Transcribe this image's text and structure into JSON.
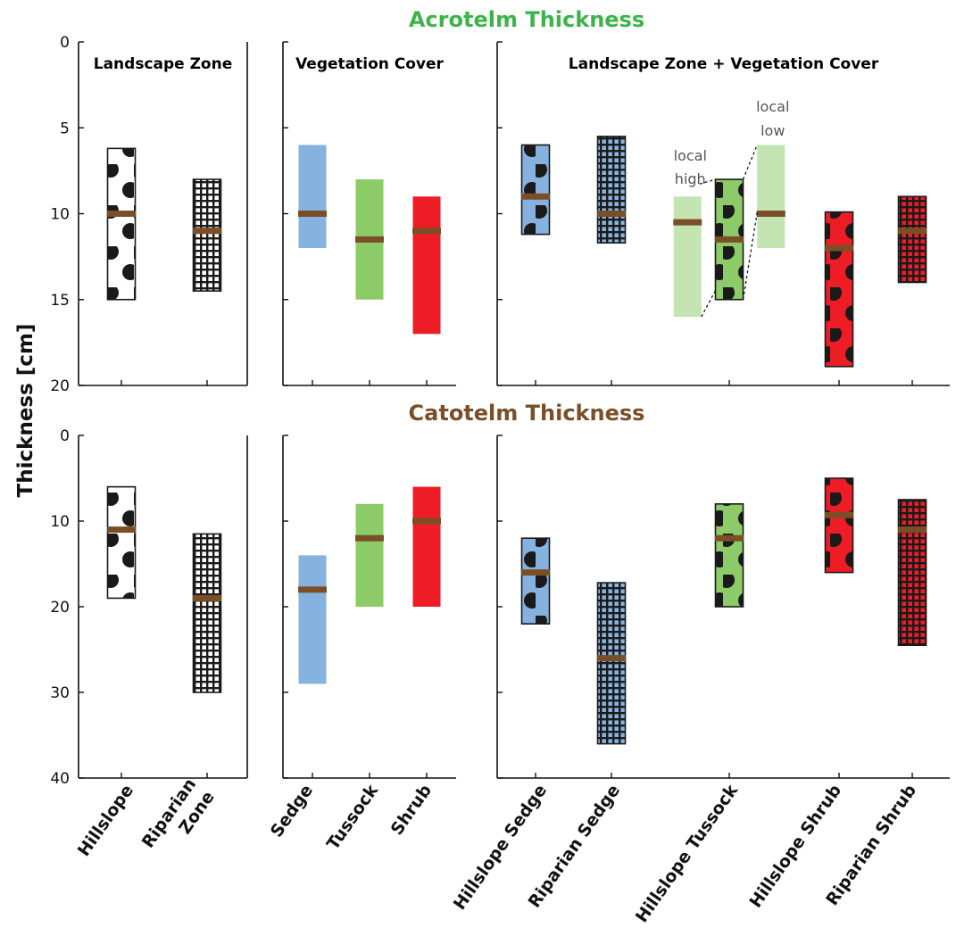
{
  "chart_data": {
    "type": "bar",
    "ylabel": "Thickness [cm]",
    "colors": {
      "acrotelm_title": "#3cb44b",
      "catotelm_title": "#7a4f28",
      "median": "#7a4f28",
      "sedge": "#86b2e0",
      "tussock": "#8ccb68",
      "tussock_light": "#c4e4b2",
      "shrub": "#ee1c25"
    },
    "sections": [
      {
        "title": "Acrotelm Thickness",
        "title_color": "#3cb44b",
        "ylim": [
          0,
          20
        ],
        "yticks": [
          "0",
          "5",
          "10",
          "15",
          "20"
        ],
        "y_inverted": true,
        "panels": [
          {
            "title": "Landscape Zone",
            "categories": [
              "Hillslope",
              "Riparian Zone"
            ],
            "bars": [
              {
                "category": "Hillslope",
                "low": 6.2,
                "high": 15,
                "median": 10,
                "fill": "dots-white",
                "outlined": true
              },
              {
                "category": "Riparian Zone",
                "low": 8,
                "high": 14.5,
                "median": 11,
                "fill": "grid-white",
                "outlined": true
              }
            ]
          },
          {
            "title": "Vegetation Cover",
            "categories": [
              "Sedge",
              "Tussock",
              "Shrub"
            ],
            "bars": [
              {
                "category": "Sedge",
                "low": 6,
                "high": 12,
                "median": 10,
                "fill": "sedge",
                "outlined": false
              },
              {
                "category": "Tussock",
                "low": 8,
                "high": 15,
                "median": 11.5,
                "fill": "tussock",
                "outlined": false
              },
              {
                "category": "Shrub",
                "low": 9,
                "high": 17,
                "median": 11,
                "fill": "shrub",
                "outlined": false
              }
            ]
          },
          {
            "title": "Landscape Zone + Vegetation Cover",
            "categories": [
              "Hillslope Sedge",
              "Riparian Sedge",
              "Hillslope Tussock",
              "Hillslope Shrub",
              "Riparian Shrub"
            ],
            "bars": [
              {
                "category": "Hillslope Sedge",
                "low": 6,
                "high": 11.2,
                "median": 9,
                "fill": "dots-sedge",
                "outlined": true
              },
              {
                "category": "Riparian Sedge",
                "low": 5.5,
                "high": 11.7,
                "median": 10,
                "fill": "grid-sedge",
                "outlined": true
              },
              {
                "category": "Hillslope Tussock (local high)",
                "low": 9,
                "high": 16,
                "median": 10.5,
                "fill": "tussock-light",
                "outlined": false,
                "offset": -0.55
              },
              {
                "category": "Hillslope Tussock",
                "low": 8,
                "high": 15,
                "median": 11.5,
                "fill": "dots-tussock",
                "outlined": true
              },
              {
                "category": "Hillslope Tussock (local low)",
                "low": 6,
                "high": 12,
                "median": 10,
                "fill": "tussock-light",
                "outlined": false,
                "offset": 0.55
              },
              {
                "category": "Hillslope Shrub",
                "low": 9.9,
                "high": 18.9,
                "median": 12,
                "fill": "dots-shrub",
                "outlined": true
              },
              {
                "category": "Riparian Shrub",
                "low": 9,
                "high": 14,
                "median": 11,
                "fill": "grid-shrub",
                "outlined": true
              }
            ],
            "annotations": [
              {
                "lines": [
                  "local",
                  "high"
                ]
              },
              {
                "lines": [
                  "local",
                  "low"
                ]
              }
            ]
          }
        ]
      },
      {
        "title": "Catotelm Thickness",
        "title_color": "#7a4f28",
        "ylim": [
          0,
          40
        ],
        "yticks": [
          "0",
          "10",
          "20",
          "30",
          "40"
        ],
        "y_inverted": true,
        "panels": [
          {
            "title": "",
            "categories": [
              "Hillslope",
              "Riparian Zone"
            ],
            "bars": [
              {
                "category": "Hillslope",
                "low": 6,
                "high": 19,
                "median": 11,
                "fill": "dots-white",
                "outlined": true
              },
              {
                "category": "Riparian Zone",
                "low": 11.5,
                "high": 30,
                "median": 19,
                "fill": "grid-white",
                "outlined": true
              }
            ]
          },
          {
            "title": "",
            "categories": [
              "Sedge",
              "Tussock",
              "Shrub"
            ],
            "bars": [
              {
                "category": "Sedge",
                "low": 14,
                "high": 29,
                "median": 18,
                "fill": "sedge",
                "outlined": false
              },
              {
                "category": "Tussock",
                "low": 8,
                "high": 20,
                "median": 12,
                "fill": "tussock",
                "outlined": false
              },
              {
                "category": "Shrub",
                "low": 6,
                "high": 20,
                "median": 10,
                "fill": "shrub",
                "outlined": false
              }
            ]
          },
          {
            "title": "",
            "categories": [
              "Hillslope Sedge",
              "Riparian Sedge",
              "Hillslope Tussock",
              "Hillslope Shrub",
              "Riparian Shrub"
            ],
            "bars": [
              {
                "category": "Hillslope Sedge",
                "low": 12,
                "high": 22,
                "median": 16,
                "fill": "dots-sedge",
                "outlined": true
              },
              {
                "category": "Riparian Sedge",
                "low": 17.2,
                "high": 36,
                "median": 26,
                "fill": "grid-sedge",
                "outlined": true
              },
              {
                "category": "Hillslope Tussock",
                "low": 8,
                "high": 20,
                "median": 12,
                "fill": "dots-tussock",
                "outlined": true
              },
              {
                "category": "Hillslope Shrub",
                "low": 5,
                "high": 16,
                "median": 9.3,
                "fill": "dots-shrub",
                "outlined": true
              },
              {
                "category": "Riparian Shrub",
                "low": 7.5,
                "high": 24.5,
                "median": 11,
                "fill": "grid-shrub",
                "outlined": true
              }
            ]
          }
        ]
      }
    ],
    "xtick_labels": [
      {
        "panel": 0,
        "lines": [
          "Hillslope"
        ]
      },
      {
        "panel": 0,
        "lines": [
          "Riparian",
          "Zone"
        ]
      },
      {
        "panel": 1,
        "lines": [
          "Sedge"
        ]
      },
      {
        "panel": 1,
        "lines": [
          "Tussock"
        ]
      },
      {
        "panel": 1,
        "lines": [
          "Shrub"
        ]
      },
      {
        "panel": 2,
        "lines": [
          "Hillslope Sedge"
        ]
      },
      {
        "panel": 2,
        "lines": [
          "Riparian Sedge"
        ]
      },
      {
        "panel": 2,
        "lines": [
          "Hillslope Tussock"
        ]
      },
      {
        "panel": 2,
        "lines": [
          "Hillslope Shrub"
        ]
      },
      {
        "panel": 2,
        "lines": [
          "Riparian Shrub"
        ]
      }
    ]
  }
}
